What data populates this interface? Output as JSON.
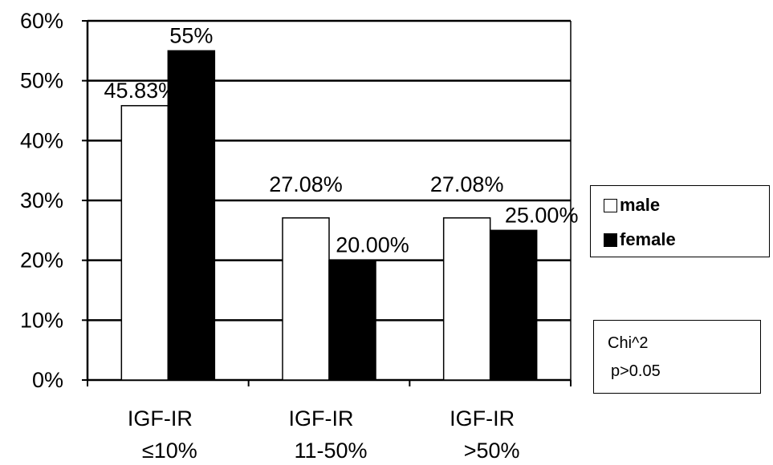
{
  "chart_data": {
    "type": "bar",
    "categories": [
      [
        "IGF-IR",
        "≤10%"
      ],
      [
        "IGF-IR",
        "11-50%"
      ],
      [
        "IGF-IR",
        ">50%"
      ]
    ],
    "series": [
      {
        "name": "male",
        "values": [
          45.83,
          27.08,
          27.08
        ],
        "labels": [
          "45.83%",
          "27.08%",
          "27.08%"
        ],
        "color": "#ffffff"
      },
      {
        "name": "female",
        "values": [
          55,
          20,
          25
        ],
        "labels": [
          "55%",
          "20.00%",
          "25.00%"
        ],
        "color": "#000000"
      }
    ],
    "ylim": [
      0,
      60
    ],
    "yticks": [
      "0%",
      "10%",
      "20%",
      "30%",
      "40%",
      "50%",
      "60%"
    ],
    "grid": true,
    "legend_position": "right",
    "title": "",
    "xlabel": "",
    "ylabel": ""
  },
  "stats_box": {
    "line1": "Chi^2",
    "line2": "p>0.05"
  }
}
